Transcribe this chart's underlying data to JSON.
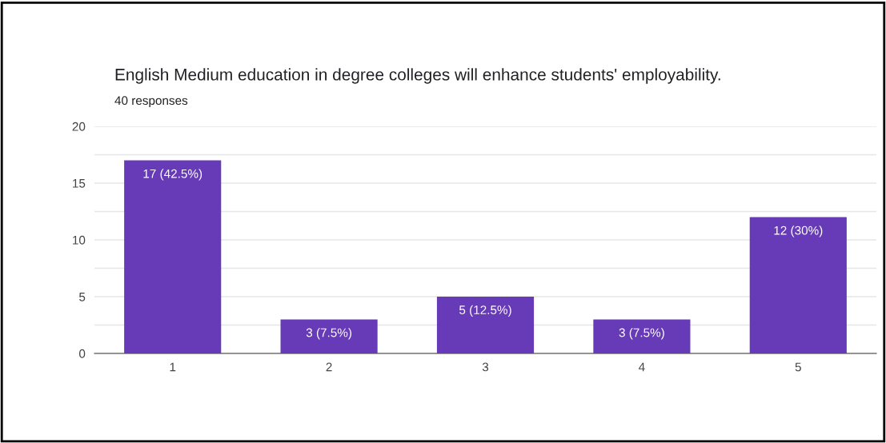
{
  "chart_data": {
    "type": "bar",
    "title": "English Medium education in degree colleges will enhance students' employability.",
    "subtitle": "40 responses",
    "categories": [
      "1",
      "2",
      "3",
      "4",
      "5"
    ],
    "values": [
      17,
      3,
      5,
      3,
      12
    ],
    "value_labels": [
      "17 (42.5%)",
      "3 (7.5%)",
      "5 (12.5%)",
      "3 (7.5%)",
      "12 (30%)"
    ],
    "color": "#673ab7",
    "ylim": [
      0,
      20
    ],
    "yticks": [
      0,
      {
        "value": 2.5,
        "label": null
      },
      5,
      {
        "value": 7.5,
        "label": null
      },
      10,
      {
        "value": 12.5,
        "label": null
      },
      15,
      {
        "value": 17.5,
        "label": null
      },
      20
    ],
    "grid": "y"
  }
}
